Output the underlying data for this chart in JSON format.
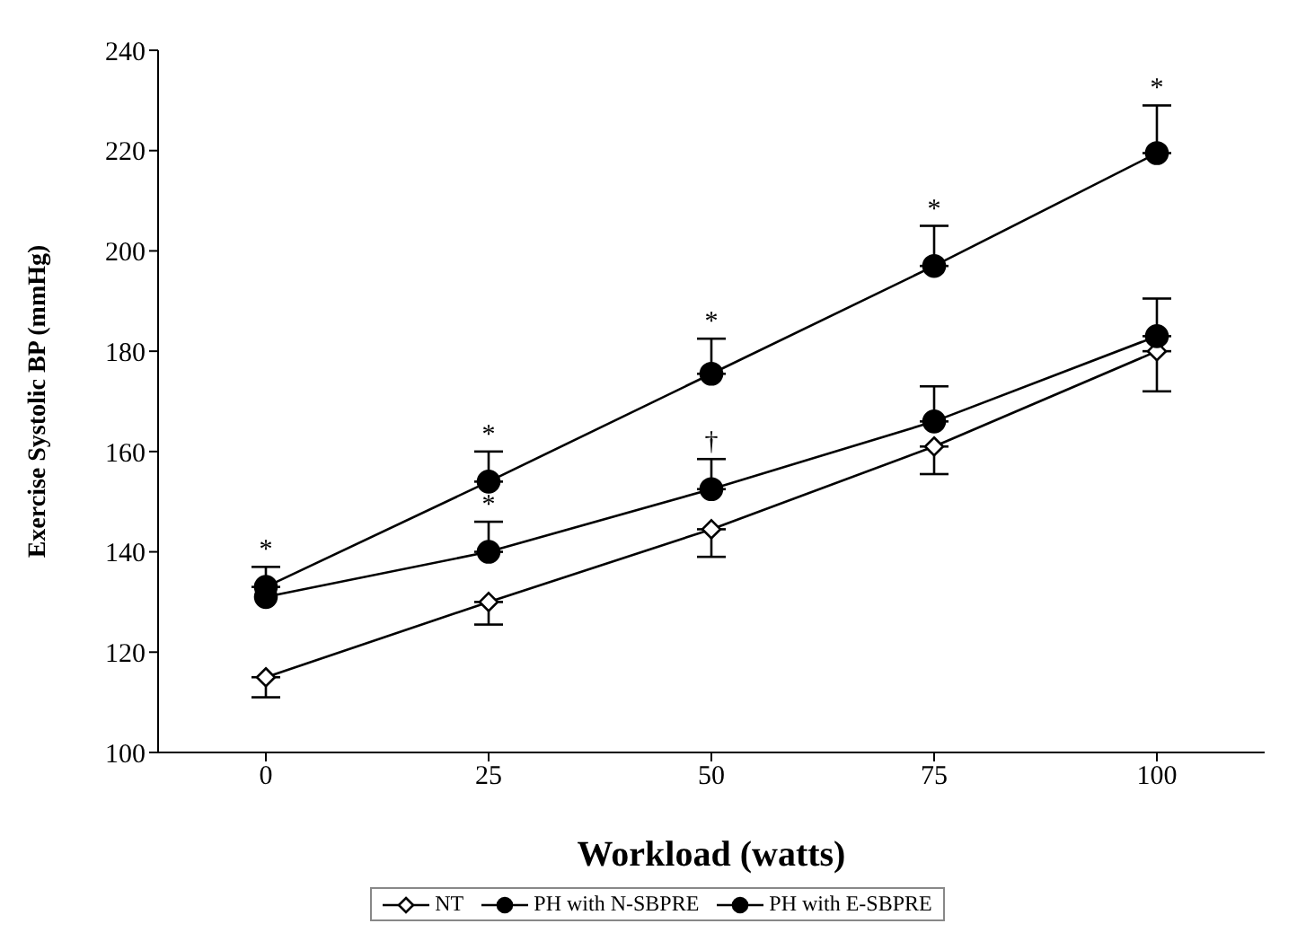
{
  "chart_data": {
    "type": "line",
    "xlabel": "Workload (watts)",
    "ylabel": "Exercise Systolic BP (mmHg)",
    "categories": [
      "0",
      "25",
      "50",
      "75",
      "100"
    ],
    "ylim": [
      100,
      240
    ],
    "yticks": [
      100,
      120,
      140,
      160,
      180,
      200,
      220,
      240
    ],
    "grid": false,
    "legend": "bottom",
    "series": [
      {
        "name": "NT",
        "color": "#000000",
        "marker": "diamond",
        "values": [
          115,
          130,
          144.5,
          161,
          180
        ],
        "errors": [
          [
            111,
            115
          ],
          [
            125.5,
            130
          ],
          [
            139,
            144.5
          ],
          [
            155.5,
            161
          ],
          [
            172,
            180
          ]
        ]
      },
      {
        "name": "PH with N-SBPRE",
        "color": "#000000",
        "marker": "circle",
        "values": [
          131,
          140,
          152.5,
          166,
          183
        ],
        "errors": [
          null,
          [
            140,
            146
          ],
          [
            152.5,
            158.5
          ],
          [
            166,
            173
          ],
          [
            183,
            190.5
          ]
        ]
      },
      {
        "name": "PH with E-SBPRE",
        "color": "#000000",
        "marker": "circle",
        "values": [
          133,
          154,
          175.5,
          197,
          219.5
        ],
        "errors": [
          [
            133,
            137
          ],
          [
            154,
            160
          ],
          [
            175.5,
            182.5
          ],
          [
            197,
            205
          ],
          [
            219.5,
            229
          ]
        ]
      }
    ],
    "annotations": [
      {
        "text": "*",
        "x": "0",
        "y": 133
      },
      {
        "text": "*",
        "x": "25",
        "y": 140
      },
      {
        "text": "*",
        "x": "50",
        "y": 175.5
      },
      {
        "text": "*",
        "x": "75",
        "y": 197
      },
      {
        "text": "*",
        "x": "100",
        "y": 219.5
      },
      {
        "text": "*",
        "x": "25",
        "y": 154
      },
      {
        "text": "†",
        "x": "50",
        "y": 152.5
      }
    ]
  }
}
